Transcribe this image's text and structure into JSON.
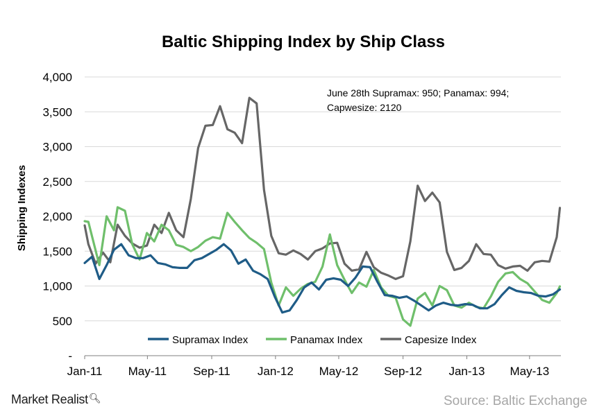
{
  "chart_data": {
    "type": "line",
    "title": "Baltic Shipping Index by Ship Class",
    "ylabel": "Shipping Indexes",
    "xlabel": "",
    "ylim": [
      0,
      4000
    ],
    "yticks": [
      0,
      500,
      1000,
      1500,
      2000,
      2500,
      3000,
      3500,
      4000
    ],
    "ytick_labels": [
      "-",
      "500",
      "1,000",
      "1,500",
      "2,000",
      "2,500",
      "3,000",
      "3,500",
      "4,000"
    ],
    "xlim": [
      "2011-01-01",
      "2013-06-30"
    ],
    "xticks": [
      "2011-01-01",
      "2011-05-01",
      "2011-09-01",
      "2012-01-01",
      "2012-05-01",
      "2012-09-01",
      "2013-01-01",
      "2013-05-01"
    ],
    "xtick_labels": [
      "Jan-11",
      "May-11",
      "Sep-11",
      "Jan-12",
      "May-12",
      "Sep-12",
      "Jan-13",
      "May-13"
    ],
    "grid": true,
    "legend_position": "bottom",
    "annotation": [
      "June 28th Supramax: 950; Panamax: 994;",
      "Capwesize: 2120"
    ],
    "series": [
      {
        "name": "Supramax Index",
        "color": "#1f5c87",
        "points": [
          [
            "2011-01-01",
            1330
          ],
          [
            "2011-01-15",
            1420
          ],
          [
            "2011-01-29",
            1100
          ],
          [
            "2011-02-12",
            1300
          ],
          [
            "2011-02-26",
            1520
          ],
          [
            "2011-03-12",
            1600
          ],
          [
            "2011-03-26",
            1440
          ],
          [
            "2011-04-09",
            1400
          ],
          [
            "2011-04-23",
            1400
          ],
          [
            "2011-05-07",
            1440
          ],
          [
            "2011-05-21",
            1330
          ],
          [
            "2011-06-04",
            1310
          ],
          [
            "2011-06-18",
            1270
          ],
          [
            "2011-07-02",
            1260
          ],
          [
            "2011-07-16",
            1260
          ],
          [
            "2011-07-30",
            1370
          ],
          [
            "2011-08-13",
            1400
          ],
          [
            "2011-08-27",
            1460
          ],
          [
            "2011-09-10",
            1520
          ],
          [
            "2011-09-24",
            1600
          ],
          [
            "2011-10-08",
            1510
          ],
          [
            "2011-10-22",
            1320
          ],
          [
            "2011-11-05",
            1380
          ],
          [
            "2011-11-19",
            1220
          ],
          [
            "2011-12-03",
            1170
          ],
          [
            "2011-12-17",
            1100
          ],
          [
            "2011-12-31",
            840
          ],
          [
            "2012-01-14",
            620
          ],
          [
            "2012-01-28",
            650
          ],
          [
            "2012-02-11",
            800
          ],
          [
            "2012-02-25",
            980
          ],
          [
            "2012-03-10",
            1050
          ],
          [
            "2012-03-24",
            950
          ],
          [
            "2012-04-07",
            1090
          ],
          [
            "2012-04-21",
            1110
          ],
          [
            "2012-05-05",
            1090
          ],
          [
            "2012-05-19",
            1000
          ],
          [
            "2012-06-02",
            1120
          ],
          [
            "2012-06-16",
            1280
          ],
          [
            "2012-06-30",
            1270
          ],
          [
            "2012-07-14",
            1060
          ],
          [
            "2012-07-28",
            870
          ],
          [
            "2012-08-11",
            860
          ],
          [
            "2012-08-25",
            830
          ],
          [
            "2012-09-08",
            850
          ],
          [
            "2012-09-22",
            790
          ],
          [
            "2012-10-06",
            720
          ],
          [
            "2012-10-20",
            650
          ],
          [
            "2012-11-03",
            720
          ],
          [
            "2012-11-17",
            760
          ],
          [
            "2012-12-01",
            730
          ],
          [
            "2012-12-15",
            720
          ],
          [
            "2012-12-29",
            740
          ],
          [
            "2013-01-12",
            730
          ],
          [
            "2013-01-26",
            680
          ],
          [
            "2013-02-09",
            680
          ],
          [
            "2013-02-23",
            740
          ],
          [
            "2013-03-09",
            870
          ],
          [
            "2013-03-23",
            980
          ],
          [
            "2013-04-06",
            930
          ],
          [
            "2013-04-20",
            910
          ],
          [
            "2013-05-04",
            900
          ],
          [
            "2013-05-18",
            860
          ],
          [
            "2013-06-01",
            850
          ],
          [
            "2013-06-15",
            880
          ],
          [
            "2013-06-28",
            950
          ]
        ]
      },
      {
        "name": "Panamax Index",
        "color": "#6fbf6b",
        "points": [
          [
            "2011-01-01",
            1930
          ],
          [
            "2011-01-08",
            1920
          ],
          [
            "2011-01-29",
            1300
          ],
          [
            "2011-02-12",
            2000
          ],
          [
            "2011-02-26",
            1800
          ],
          [
            "2011-03-05",
            2130
          ],
          [
            "2011-03-19",
            2080
          ],
          [
            "2011-04-02",
            1600
          ],
          [
            "2011-04-16",
            1380
          ],
          [
            "2011-04-30",
            1760
          ],
          [
            "2011-05-14",
            1640
          ],
          [
            "2011-05-28",
            1880
          ],
          [
            "2011-06-11",
            1800
          ],
          [
            "2011-06-25",
            1590
          ],
          [
            "2011-07-09",
            1560
          ],
          [
            "2011-07-23",
            1500
          ],
          [
            "2011-08-06",
            1560
          ],
          [
            "2011-08-20",
            1650
          ],
          [
            "2011-09-03",
            1700
          ],
          [
            "2011-09-17",
            1680
          ],
          [
            "2011-10-01",
            2050
          ],
          [
            "2011-10-15",
            1920
          ],
          [
            "2011-10-29",
            1800
          ],
          [
            "2011-11-12",
            1690
          ],
          [
            "2011-11-26",
            1620
          ],
          [
            "2011-12-10",
            1530
          ],
          [
            "2011-12-24",
            1050
          ],
          [
            "2012-01-07",
            720
          ],
          [
            "2012-01-21",
            980
          ],
          [
            "2012-02-04",
            860
          ],
          [
            "2012-02-18",
            960
          ],
          [
            "2012-03-03",
            1030
          ],
          [
            "2012-03-17",
            1060
          ],
          [
            "2012-03-31",
            1280
          ],
          [
            "2012-04-14",
            1740
          ],
          [
            "2012-04-28",
            1300
          ],
          [
            "2012-05-12",
            1090
          ],
          [
            "2012-05-26",
            900
          ],
          [
            "2012-06-09",
            1050
          ],
          [
            "2012-06-23",
            990
          ],
          [
            "2012-07-07",
            1230
          ],
          [
            "2012-07-21",
            980
          ],
          [
            "2012-08-04",
            860
          ],
          [
            "2012-08-18",
            830
          ],
          [
            "2012-09-01",
            520
          ],
          [
            "2012-09-15",
            430
          ],
          [
            "2012-09-29",
            820
          ],
          [
            "2012-10-13",
            900
          ],
          [
            "2012-10-27",
            720
          ],
          [
            "2012-11-10",
            1000
          ],
          [
            "2012-11-24",
            940
          ],
          [
            "2012-12-08",
            720
          ],
          [
            "2012-12-22",
            690
          ],
          [
            "2013-01-05",
            760
          ],
          [
            "2013-01-19",
            700
          ],
          [
            "2013-02-02",
            680
          ],
          [
            "2013-02-16",
            850
          ],
          [
            "2013-03-02",
            1060
          ],
          [
            "2013-03-16",
            1180
          ],
          [
            "2013-03-30",
            1200
          ],
          [
            "2013-04-13",
            1100
          ],
          [
            "2013-04-27",
            1040
          ],
          [
            "2013-05-11",
            920
          ],
          [
            "2013-05-25",
            800
          ],
          [
            "2013-06-08",
            760
          ],
          [
            "2013-06-22",
            900
          ],
          [
            "2013-06-28",
            994
          ]
        ]
      },
      {
        "name": "Capesize Index",
        "color": "#666666",
        "points": [
          [
            "2011-01-01",
            1870
          ],
          [
            "2011-01-08",
            1600
          ],
          [
            "2011-01-22",
            1320
          ],
          [
            "2011-02-05",
            1480
          ],
          [
            "2011-02-19",
            1340
          ],
          [
            "2011-03-05",
            1880
          ],
          [
            "2011-03-19",
            1720
          ],
          [
            "2011-04-02",
            1610
          ],
          [
            "2011-04-16",
            1550
          ],
          [
            "2011-04-30",
            1580
          ],
          [
            "2011-05-14",
            1880
          ],
          [
            "2011-05-28",
            1760
          ],
          [
            "2011-06-11",
            2050
          ],
          [
            "2011-06-25",
            1800
          ],
          [
            "2011-07-09",
            1700
          ],
          [
            "2011-07-23",
            2250
          ],
          [
            "2011-08-06",
            2980
          ],
          [
            "2011-08-20",
            3300
          ],
          [
            "2011-09-03",
            3310
          ],
          [
            "2011-09-17",
            3580
          ],
          [
            "2011-10-01",
            3250
          ],
          [
            "2011-10-15",
            3200
          ],
          [
            "2011-10-29",
            3050
          ],
          [
            "2011-11-12",
            3700
          ],
          [
            "2011-11-26",
            3620
          ],
          [
            "2011-12-10",
            2380
          ],
          [
            "2011-12-24",
            1720
          ],
          [
            "2012-01-07",
            1470
          ],
          [
            "2012-01-21",
            1450
          ],
          [
            "2012-02-04",
            1510
          ],
          [
            "2012-02-18",
            1460
          ],
          [
            "2012-03-03",
            1380
          ],
          [
            "2012-03-17",
            1500
          ],
          [
            "2012-03-31",
            1540
          ],
          [
            "2012-04-14",
            1610
          ],
          [
            "2012-04-28",
            1620
          ],
          [
            "2012-05-12",
            1320
          ],
          [
            "2012-05-26",
            1220
          ],
          [
            "2012-06-09",
            1240
          ],
          [
            "2012-06-23",
            1490
          ],
          [
            "2012-07-07",
            1270
          ],
          [
            "2012-07-21",
            1190
          ],
          [
            "2012-08-04",
            1150
          ],
          [
            "2012-08-18",
            1100
          ],
          [
            "2012-09-01",
            1140
          ],
          [
            "2012-09-15",
            1640
          ],
          [
            "2012-09-29",
            2440
          ],
          [
            "2012-10-13",
            2220
          ],
          [
            "2012-10-27",
            2340
          ],
          [
            "2012-11-10",
            2200
          ],
          [
            "2012-11-24",
            1490
          ],
          [
            "2012-12-08",
            1230
          ],
          [
            "2012-12-22",
            1260
          ],
          [
            "2013-01-05",
            1360
          ],
          [
            "2013-01-19",
            1600
          ],
          [
            "2013-02-02",
            1460
          ],
          [
            "2013-02-16",
            1450
          ],
          [
            "2013-03-02",
            1300
          ],
          [
            "2013-03-16",
            1250
          ],
          [
            "2013-03-30",
            1280
          ],
          [
            "2013-04-13",
            1290
          ],
          [
            "2013-04-27",
            1220
          ],
          [
            "2013-05-11",
            1340
          ],
          [
            "2013-05-25",
            1360
          ],
          [
            "2013-06-08",
            1350
          ],
          [
            "2013-06-22",
            1700
          ],
          [
            "2013-06-28",
            2120
          ]
        ]
      }
    ]
  },
  "branding": {
    "logo": "Market Realist",
    "logo_icon": "magnifier-icon",
    "source": "Source: Baltic Exchange"
  }
}
